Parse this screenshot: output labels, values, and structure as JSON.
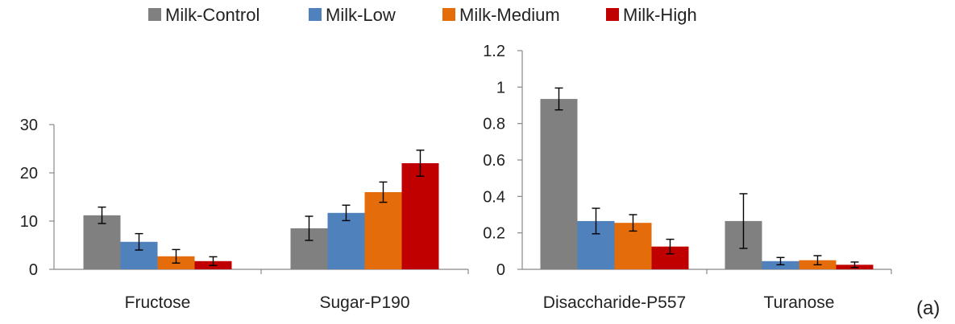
{
  "legend": {
    "items": [
      {
        "label": "Milk-Control",
        "color": "#808080"
      },
      {
        "label": "Milk-Low",
        "color": "#4F81BD"
      },
      {
        "label": "Milk-Medium",
        "color": "#E46C0A"
      },
      {
        "label": "Milk-High",
        "color": "#C00000"
      }
    ]
  },
  "panel_label": "(a)",
  "chart_data": [
    {
      "type": "bar",
      "title": "",
      "xlabel": "",
      "ylabel": "",
      "categories": [
        "Fructose",
        "Sugar-P190"
      ],
      "ylim": [
        0,
        30
      ],
      "yticks": [
        0,
        10,
        20,
        30
      ],
      "ytick_labels": [
        "0",
        "10",
        "20",
        "30"
      ],
      "grid": false,
      "legend_position": "top",
      "series": [
        {
          "name": "Milk-Control",
          "color": "#808080",
          "values": [
            11.2,
            8.5
          ],
          "errors": [
            1.7,
            2.5
          ]
        },
        {
          "name": "Milk-Low",
          "color": "#4F81BD",
          "values": [
            5.7,
            11.7
          ],
          "errors": [
            1.7,
            1.6
          ]
        },
        {
          "name": "Milk-Medium",
          "color": "#E46C0A",
          "values": [
            2.7,
            16.0
          ],
          "errors": [
            1.4,
            2.1
          ]
        },
        {
          "name": "Milk-High",
          "color": "#C00000",
          "values": [
            1.7,
            22.0
          ],
          "errors": [
            0.9,
            2.7
          ]
        }
      ]
    },
    {
      "type": "bar",
      "title": "",
      "xlabel": "",
      "ylabel": "",
      "categories": [
        "Disaccharide-P557",
        "Turanose"
      ],
      "ylim": [
        0,
        1.2
      ],
      "yticks": [
        0,
        0.2,
        0.4,
        0.6,
        0.8,
        1,
        1.2
      ],
      "ytick_labels": [
        "0",
        "0.2",
        "0.4",
        "0.6",
        "0.8",
        "1",
        "1.2"
      ],
      "grid": false,
      "legend_position": "top",
      "series": [
        {
          "name": "Milk-Control",
          "color": "#808080",
          "values": [
            0.935,
            0.265
          ],
          "errors": [
            0.06,
            0.15
          ]
        },
        {
          "name": "Milk-Low",
          "color": "#4F81BD",
          "values": [
            0.265,
            0.045
          ],
          "errors": [
            0.07,
            0.02
          ]
        },
        {
          "name": "Milk-Medium",
          "color": "#E46C0A",
          "values": [
            0.255,
            0.05
          ],
          "errors": [
            0.045,
            0.025
          ]
        },
        {
          "name": "Milk-High",
          "color": "#C00000",
          "values": [
            0.125,
            0.025
          ],
          "errors": [
            0.04,
            0.015
          ]
        }
      ]
    }
  ]
}
